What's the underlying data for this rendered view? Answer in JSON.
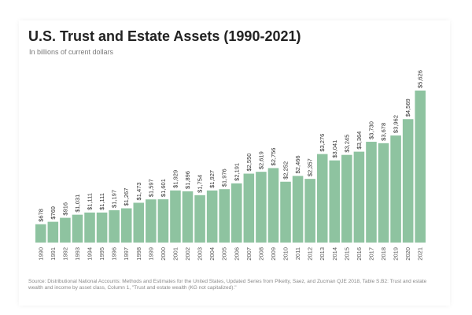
{
  "chart_data": {
    "type": "bar",
    "title": "U.S. Trust and Estate Assets (1990-2021)",
    "subtitle": "In billions of current dollars",
    "categories": [
      "1990",
      "1991",
      "1992",
      "1993",
      "1994",
      "1995",
      "1996",
      "1997",
      "1998",
      "1999",
      "2000",
      "2001",
      "2002",
      "2003",
      "2004",
      "2005",
      "2006",
      "2007",
      "2008",
      "2009",
      "2010",
      "2011",
      "2012",
      "2013",
      "2014",
      "2015",
      "2016",
      "2017",
      "2018",
      "2019",
      "2020",
      "2021"
    ],
    "values": [
      678,
      769,
      916,
      1031,
      1111,
      1111,
      1197,
      1267,
      1473,
      1597,
      1601,
      1929,
      1896,
      1754,
      1927,
      1976,
      2191,
      2550,
      2619,
      2756,
      2252,
      2466,
      2357,
      3276,
      3041,
      3245,
      3364,
      3730,
      3678,
      3962,
      4569,
      5626
    ],
    "data_labels": [
      "$678",
      "$769",
      "$916",
      "$1,031",
      "$1,111",
      "$1,111",
      "$1,197",
      "$1,267",
      "$1,473",
      "$1,597",
      "$1,601",
      "$1,929",
      "$1,896",
      "$1,754",
      "$1,927",
      "$1,976",
      "$2,191",
      "$2,550",
      "$2,619",
      "$2,756",
      "$2,252",
      "$2,466",
      "$2,357",
      "$3,276",
      "$3,041",
      "$3,245",
      "$3,364",
      "$3,730",
      "$3,678",
      "$3,962",
      "$4,569",
      "$5,626"
    ],
    "xlabel": "",
    "ylabel": "",
    "ylim": [
      0,
      5626
    ],
    "grid": false,
    "legend": "none",
    "bar_color": "#8ec3a0",
    "source": "Source: Distributional National Accounts: Methods and Estimates for the United States, Updated Series from Piketty, Saez, and Zucman QJE 2018, Table S.B2: Trust and estate wealth and income by asset class, Column 1, \"Trust and estate wealth (KG not capitalized).\""
  }
}
